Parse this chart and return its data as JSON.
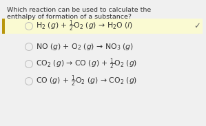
{
  "title_line1": "Which reaction can be used to calculate the",
  "title_line2": "enthalpy of formation of a substance?",
  "options": [
    {
      "label": "CO $(g)$ + $\\frac{1}{2}$O$_2$ $(g)$ → CO$_2$ $(g)$",
      "highlighted": false,
      "correct": false
    },
    {
      "label": "CO$_2$ $(g)$ → CO $(g)$ + $\\frac{1}{2}$O$_2$ $(g)$",
      "highlighted": false,
      "correct": false
    },
    {
      "label": "NO $(g)$ + O$_2$ $(g)$ → NO$_3$ $(g)$",
      "highlighted": false,
      "correct": false
    },
    {
      "label": "H$_2$ $(g)$ + $\\frac{1}{2}$O$_2$ $(g)$ → H$_2$O $(l)$",
      "highlighted": true,
      "correct": true
    }
  ],
  "highlight_color": "#fafad2",
  "bar_color": "#b8960c",
  "circle_color": "#bbbbbb",
  "text_color": "#333333",
  "bg_color": "#f0f0f0",
  "check_color": "#666666",
  "title_fontsize": 6.8,
  "option_fontsize": 7.8,
  "check_fontsize": 8.5
}
